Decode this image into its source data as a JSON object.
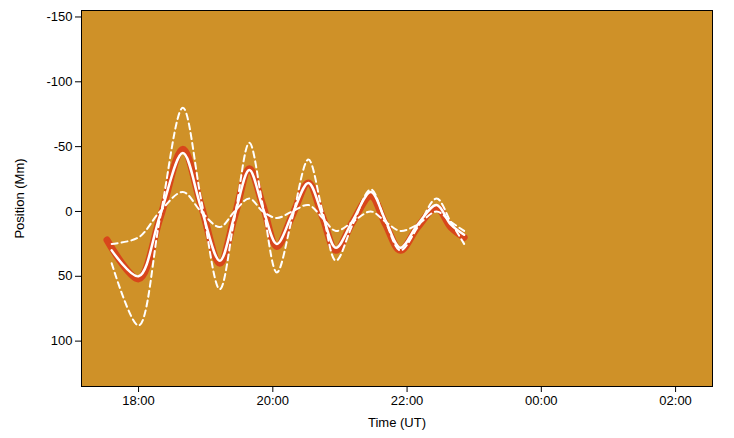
{
  "chart_data": {
    "type": "line",
    "xlabel": "Time (UT)",
    "ylabel": "Position (Mm)",
    "xlim": [
      17.15,
      26.55
    ],
    "xticks": [
      {
        "value": 18,
        "label": "18:00"
      },
      {
        "value": 20,
        "label": "20:00"
      },
      {
        "value": 22,
        "label": "22:00"
      },
      {
        "value": 24,
        "label": "00:00"
      },
      {
        "value": 26,
        "label": "02:00"
      }
    ],
    "ylim": [
      -155,
      135
    ],
    "yticks": [
      -150,
      -100,
      -50,
      0,
      50,
      100
    ],
    "grid": false,
    "series": [
      {
        "color": "#d8461b",
        "line_style": "solid",
        "x": [
          17.53,
          18.0,
          18.32,
          18.66,
          18.93,
          19.21,
          19.43,
          19.65,
          19.85,
          20.06,
          20.29,
          20.53,
          20.74,
          20.94,
          21.19,
          21.46,
          21.68,
          21.9,
          22.16,
          22.44,
          22.65,
          22.85
        ],
        "values": [
          22,
          52,
          5,
          -48,
          -5,
          40,
          4,
          -33,
          -5,
          27,
          3,
          -22,
          4,
          30,
          8,
          -12,
          10,
          30,
          12,
          -3,
          12,
          20
        ]
      },
      {
        "color": "#ffffff",
        "line_style": "dashed",
        "x": [
          17.6,
          18.0,
          18.32,
          18.66,
          18.93,
          19.21,
          19.43,
          19.65,
          19.85,
          20.06,
          20.29,
          20.53,
          20.74,
          20.94,
          21.19,
          21.46,
          21.68,
          21.9,
          22.16,
          22.44,
          22.65,
          22.85
        ],
        "values": [
          40,
          88,
          5,
          -80,
          -10,
          60,
          5,
          -53,
          -5,
          47,
          5,
          -40,
          0,
          38,
          10,
          -17,
          8,
          30,
          12,
          -10,
          8,
          25
        ]
      },
      {
        "color": "#ffffff",
        "line_style": "dashed",
        "x": [
          17.6,
          18.0,
          18.32,
          18.66,
          18.93,
          19.21,
          19.43,
          19.65,
          19.85,
          20.06,
          20.29,
          20.53,
          20.74,
          20.94,
          21.19,
          21.46,
          21.68,
          21.9,
          22.16,
          22.44,
          22.65,
          22.85
        ],
        "values": [
          25,
          20,
          0,
          -15,
          0,
          12,
          0,
          -10,
          0,
          5,
          0,
          -5,
          5,
          15,
          8,
          0,
          8,
          15,
          10,
          0,
          8,
          15
        ]
      },
      {
        "color": "#ffffff",
        "line_style": "solid",
        "x": [
          17.6,
          18.0,
          18.32,
          18.66,
          18.93,
          19.21,
          19.43,
          19.65,
          19.85,
          20.06,
          20.29,
          20.53,
          20.74,
          20.94,
          21.19,
          21.46,
          21.68,
          21.9,
          22.16,
          22.44,
          22.65,
          22.85
        ],
        "values": [
          30,
          50,
          3,
          -45,
          -3,
          38,
          3,
          -32,
          -3,
          25,
          2,
          -22,
          3,
          28,
          7,
          -15,
          7,
          28,
          10,
          -5,
          10,
          18
        ]
      }
    ]
  }
}
